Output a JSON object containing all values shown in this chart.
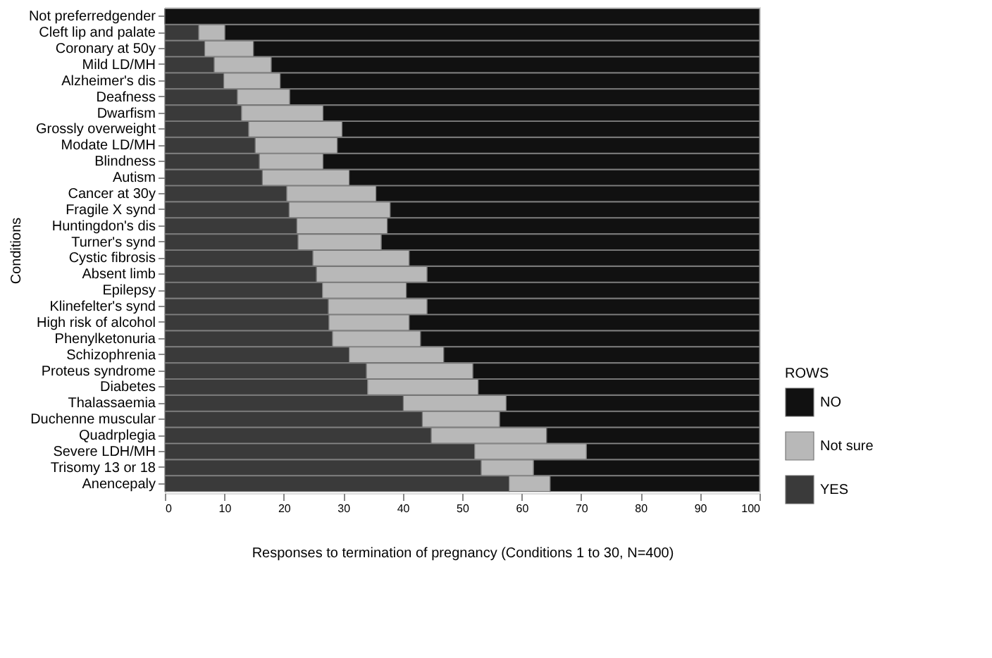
{
  "chart_data": {
    "type": "bar",
    "orientation": "horizontal",
    "stacked": true,
    "xlabel": "Responses to termination of pregnancy (Conditions 1 to 30, N=400)",
    "ylabel": "Conditions",
    "legend_title": "ROWS",
    "categories": [
      "Not preferredgender",
      "Cleft lip and palate",
      "Coronary at 50y",
      "Mild LD/MH",
      "Alzheimer's dis",
      "Deafness",
      "Dwarfism",
      "Grossly overweight",
      "Modate LD/MH",
      "Blindness",
      "Autism",
      "Cancer at 30y",
      "Fragile X synd",
      "Huntingdon's dis",
      "Turner's synd",
      "Cystic fibrosis",
      "Absent limb",
      "Epilepsy",
      "Klinefelter's synd",
      "High risk of alcohol",
      "Phenylketonuria",
      "Schizophrenia",
      "Proteus syndrome",
      "Diabetes",
      "Thalassaemia",
      "Duchenne muscular",
      "Quadrplegia",
      "Severe LDH/MH",
      "Trisomy 13 or 18",
      "Anencepaly"
    ],
    "series": [
      {
        "name": "YES",
        "color": "#3a3a3a",
        "values": [
          0,
          5.7,
          6.7,
          8.3,
          9.9,
          12.2,
          12.9,
          14.1,
          15.2,
          15.9,
          16.4,
          20.5,
          20.9,
          22.2,
          22.4,
          24.9,
          25.5,
          26.5,
          27.5,
          27.6,
          28.2,
          31.0,
          33.9,
          34.1,
          40.1,
          43.3,
          44.8,
          52.1,
          53.2,
          57.9
        ]
      },
      {
        "name": "Not sure",
        "color": "#b8b8b8",
        "values": [
          0,
          4.4,
          8.2,
          9.6,
          9.5,
          8.8,
          13.7,
          15.7,
          13.8,
          10.7,
          14.6,
          15.0,
          17.0,
          15.2,
          14.0,
          16.2,
          18.6,
          14.1,
          16.6,
          13.5,
          14.8,
          15.9,
          17.9,
          18.6,
          17.3,
          13.0,
          19.4,
          18.8,
          8.8,
          6.9
        ]
      },
      {
        "name": "NO",
        "color": "#111111",
        "values": [
          100,
          89.9,
          85.1,
          82.1,
          80.6,
          79.0,
          73.4,
          70.2,
          71.0,
          73.4,
          69.0,
          64.5,
          62.1,
          62.6,
          63.6,
          58.9,
          55.9,
          59.4,
          55.9,
          58.9,
          57.0,
          53.1,
          48.2,
          47.3,
          42.6,
          43.7,
          35.8,
          29.1,
          38.0,
          35.2
        ]
      }
    ],
    "xlim": [
      0,
      100
    ],
    "xticks": [
      0,
      10,
      20,
      30,
      40,
      50,
      60,
      70,
      80,
      90,
      100
    ],
    "grid": false,
    "legend": "bottom right"
  }
}
